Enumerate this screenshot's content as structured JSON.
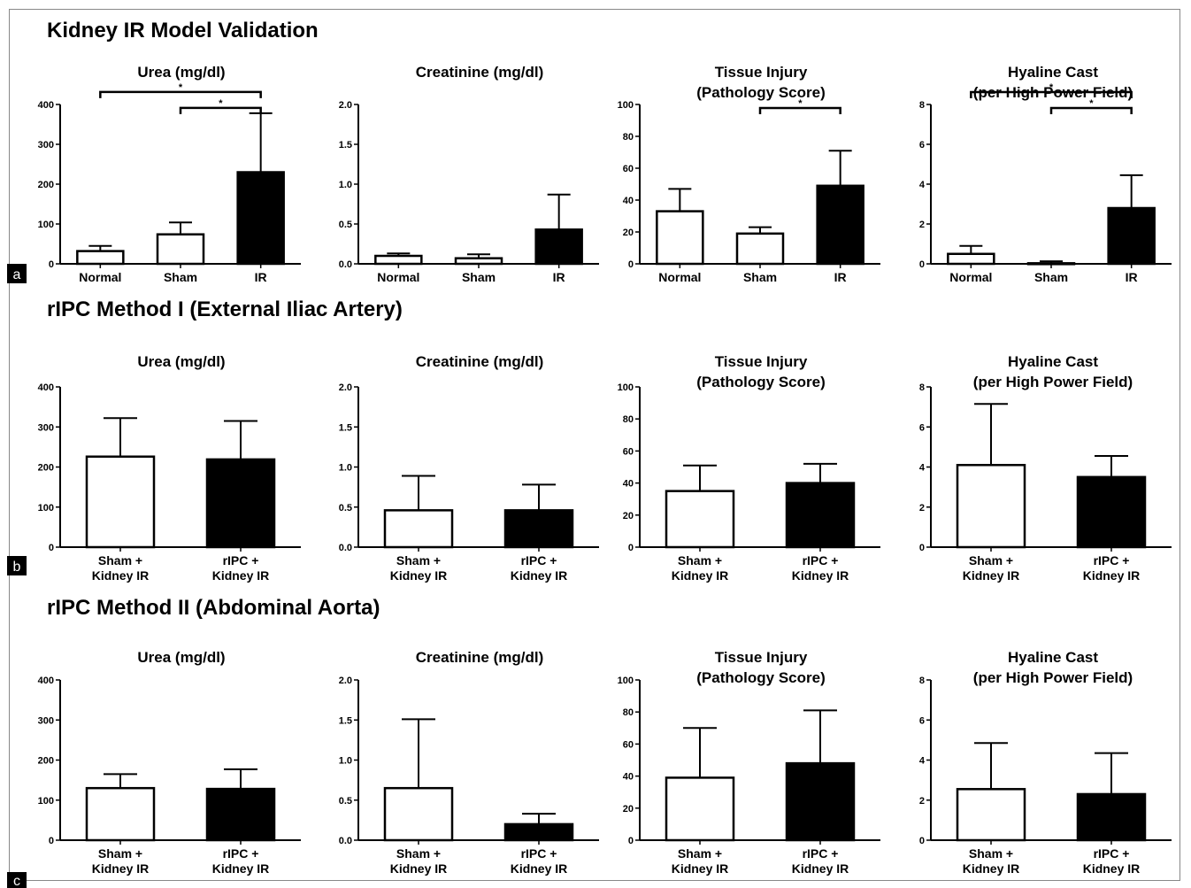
{
  "panels": [
    {
      "tag": "a",
      "title": "Kidney IR Model Validation"
    },
    {
      "tag": "b",
      "title": "rIPC Method I (External Iliac Artery)"
    },
    {
      "tag": "c",
      "title": "rIPC Method II (Abdominal Aorta)"
    }
  ],
  "colors": {
    "filled": "#000000",
    "open": "#ffffff",
    "stroke": "#000000"
  },
  "chart_data": [
    {
      "panel": "a",
      "type": "bar",
      "title": [
        "Urea (mg/dl)"
      ],
      "categories": [
        "Normal",
        "Sham",
        "IR"
      ],
      "values": [
        32,
        74,
        230
      ],
      "errors": [
        13,
        30,
        148
      ],
      "fills": [
        "white",
        "white",
        "black"
      ],
      "ylim": [
        0,
        400
      ],
      "yticks": [
        0,
        100,
        200,
        300,
        400
      ],
      "ytick_labels": [
        "0",
        "100",
        "200",
        "300",
        "400"
      ],
      "significance": [
        {
          "from": 0,
          "to": 2,
          "label": "*"
        },
        {
          "from": 1,
          "to": 2,
          "label": "*"
        }
      ]
    },
    {
      "panel": "a",
      "type": "bar",
      "title": [
        "Creatinine (mg/dl)"
      ],
      "categories": [
        "Normal",
        "Sham",
        "IR"
      ],
      "values": [
        0.1,
        0.07,
        0.43
      ],
      "errors": [
        0.03,
        0.05,
        0.44
      ],
      "fills": [
        "white",
        "white",
        "black"
      ],
      "ylim": [
        0,
        2
      ],
      "yticks": [
        0,
        0.5,
        1,
        1.5,
        2
      ],
      "ytick_labels": [
        "0.0",
        "0.5",
        "1.0",
        "1.5",
        "2.0"
      ],
      "significance": []
    },
    {
      "panel": "a",
      "type": "bar",
      "title": [
        "Tissue Injury",
        "(Pathology Score)"
      ],
      "categories": [
        "Normal",
        "Sham",
        "IR"
      ],
      "values": [
        33,
        19,
        49
      ],
      "errors": [
        14,
        4,
        22
      ],
      "fills": [
        "white",
        "white",
        "black"
      ],
      "ylim": [
        0,
        100
      ],
      "yticks": [
        0,
        20,
        40,
        60,
        80,
        100
      ],
      "ytick_labels": [
        "0",
        "20",
        "40",
        "60",
        "80",
        "100"
      ],
      "significance": [
        {
          "from": 1,
          "to": 2,
          "label": "*"
        }
      ]
    },
    {
      "panel": "a",
      "type": "bar",
      "title": [
        "Hyaline Cast",
        "(per High Power Field)"
      ],
      "categories": [
        "Normal",
        "Sham",
        "IR"
      ],
      "values": [
        0.5,
        0.03,
        2.8
      ],
      "errors": [
        0.4,
        0.1,
        1.65
      ],
      "fills": [
        "white",
        "white",
        "black"
      ],
      "ylim": [
        0,
        8
      ],
      "yticks": [
        0,
        2,
        4,
        6,
        8
      ],
      "ytick_labels": [
        "0",
        "2",
        "4",
        "6",
        "8"
      ],
      "significance": [
        {
          "from": 0,
          "to": 2,
          "label": "*"
        },
        {
          "from": 1,
          "to": 2,
          "label": "*"
        }
      ]
    },
    {
      "panel": "b",
      "type": "bar",
      "title": [
        "Urea (mg/dl)"
      ],
      "categories": [
        [
          "Sham +",
          "Kidney IR"
        ],
        [
          "rIPC +",
          "Kidney IR"
        ]
      ],
      "values": [
        226,
        219
      ],
      "errors": [
        96,
        96
      ],
      "fills": [
        "white",
        "black"
      ],
      "ylim": [
        0,
        400
      ],
      "yticks": [
        0,
        100,
        200,
        300,
        400
      ],
      "ytick_labels": [
        "0",
        "100",
        "200",
        "300",
        "400"
      ],
      "significance": []
    },
    {
      "panel": "b",
      "type": "bar",
      "title": [
        "Creatinine (mg/dl)"
      ],
      "categories": [
        [
          "Sham +",
          "Kidney IR"
        ],
        [
          "rIPC +",
          "Kidney IR"
        ]
      ],
      "values": [
        0.46,
        0.46
      ],
      "errors": [
        0.43,
        0.32
      ],
      "fills": [
        "white",
        "black"
      ],
      "ylim": [
        0,
        2
      ],
      "yticks": [
        0,
        0.5,
        1,
        1.5,
        2
      ],
      "ytick_labels": [
        "0.0",
        "0.5",
        "1.0",
        "1.5",
        "2.0"
      ],
      "significance": []
    },
    {
      "panel": "b",
      "type": "bar",
      "title": [
        "Tissue Injury",
        "(Pathology Score)"
      ],
      "categories": [
        [
          "Sham +",
          "Kidney IR"
        ],
        [
          "rIPC +",
          "Kidney IR"
        ]
      ],
      "values": [
        35,
        40
      ],
      "errors": [
        16,
        12
      ],
      "fills": [
        "white",
        "black"
      ],
      "ylim": [
        0,
        100
      ],
      "yticks": [
        0,
        20,
        40,
        60,
        80,
        100
      ],
      "ytick_labels": [
        "0",
        "20",
        "40",
        "60",
        "80",
        "100"
      ],
      "significance": []
    },
    {
      "panel": "b",
      "type": "bar",
      "title": [
        "Hyaline Cast",
        "(per High Power Field)"
      ],
      "categories": [
        [
          "Sham +",
          "Kidney IR"
        ],
        [
          "rIPC +",
          "Kidney IR"
        ]
      ],
      "values": [
        4.1,
        3.5
      ],
      "errors": [
        3.05,
        1.05
      ],
      "fills": [
        "white",
        "black"
      ],
      "ylim": [
        0,
        8
      ],
      "yticks": [
        0,
        2,
        4,
        6,
        8
      ],
      "ytick_labels": [
        "0",
        "2",
        "4",
        "6",
        "8"
      ],
      "significance": []
    },
    {
      "panel": "c",
      "type": "bar",
      "title": [
        "Urea (mg/dl)"
      ],
      "categories": [
        [
          "Sham +",
          "Kidney IR"
        ],
        [
          "rIPC +",
          "Kidney IR"
        ]
      ],
      "values": [
        130,
        128
      ],
      "errors": [
        35,
        49
      ],
      "fills": [
        "white",
        "black"
      ],
      "ylim": [
        0,
        400
      ],
      "yticks": [
        0,
        100,
        200,
        300,
        400
      ],
      "ytick_labels": [
        "0",
        "100",
        "200",
        "300",
        "400"
      ],
      "significance": []
    },
    {
      "panel": "c",
      "type": "bar",
      "title": [
        "Creatinine (mg/dl)"
      ],
      "categories": [
        [
          "Sham +",
          "Kidney IR"
        ],
        [
          "rIPC +",
          "Kidney IR"
        ]
      ],
      "values": [
        0.65,
        0.2
      ],
      "errors": [
        0.86,
        0.13
      ],
      "fills": [
        "white",
        "black"
      ],
      "ylim": [
        0,
        2
      ],
      "yticks": [
        0,
        0.5,
        1,
        1.5,
        2
      ],
      "ytick_labels": [
        "0.0",
        "0.5",
        "1.0",
        "1.5",
        "2.0"
      ],
      "significance": []
    },
    {
      "panel": "c",
      "type": "bar",
      "title": [
        "Tissue Injury",
        "(Pathology Score)"
      ],
      "categories": [
        [
          "Sham +",
          "Kidney IR"
        ],
        [
          "rIPC +",
          "Kidney IR"
        ]
      ],
      "values": [
        39,
        48
      ],
      "errors": [
        31,
        33
      ],
      "fills": [
        "white",
        "black"
      ],
      "ylim": [
        0,
        100
      ],
      "yticks": [
        0,
        20,
        40,
        60,
        80,
        100
      ],
      "ytick_labels": [
        "0",
        "20",
        "40",
        "60",
        "80",
        "100"
      ],
      "significance": []
    },
    {
      "panel": "c",
      "type": "bar",
      "title": [
        "Hyaline Cast",
        "(per High Power Field)"
      ],
      "categories": [
        [
          "Sham +",
          "Kidney IR"
        ],
        [
          "rIPC +",
          "Kidney IR"
        ]
      ],
      "values": [
        2.55,
        2.3
      ],
      "errors": [
        2.3,
        2.05
      ],
      "fills": [
        "white",
        "black"
      ],
      "ylim": [
        0,
        8
      ],
      "yticks": [
        0,
        2,
        4,
        6,
        8
      ],
      "ytick_labels": [
        "0",
        "2",
        "4",
        "6",
        "8"
      ],
      "significance": []
    }
  ]
}
